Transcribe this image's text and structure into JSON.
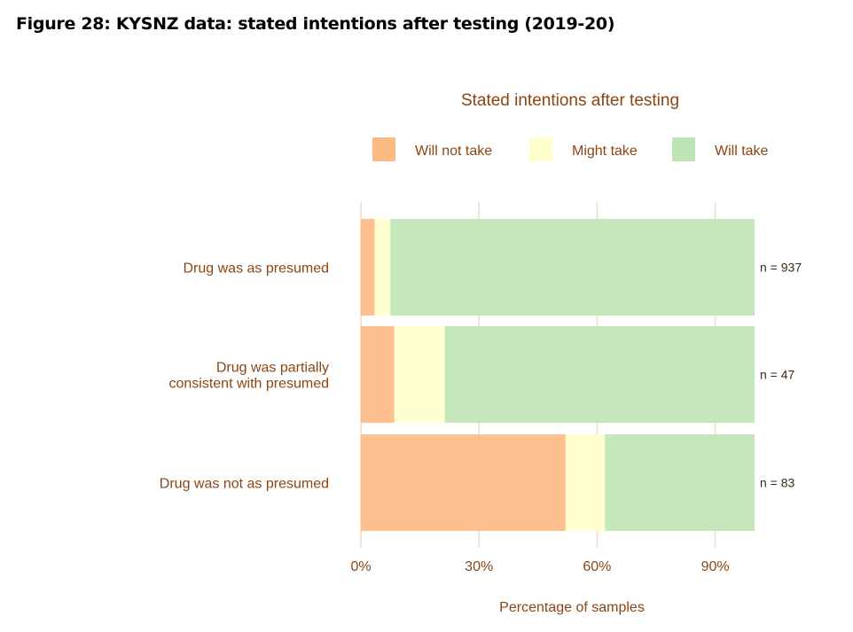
{
  "figure_title": "Figure 28: KYSNZ data: stated intentions after testing (2019-20)",
  "chart_data": {
    "type": "bar",
    "orientation": "horizontal",
    "stacked": true,
    "title": "Stated intentions after testing",
    "xlabel": "Percentage of samples",
    "ylabel": "",
    "xlim": [
      0,
      100
    ],
    "xticks": [
      0,
      30,
      60,
      90
    ],
    "xtick_labels": [
      "0%",
      "30%",
      "60%",
      "90%"
    ],
    "grid": "vertical",
    "legend_position": "top",
    "categories": [
      "Drug was as presumed",
      "Drug was partially consistent with presumed",
      "Drug was not as presumed"
    ],
    "category_lines": [
      [
        "Drug was as presumed"
      ],
      [
        "Drug was partially",
        "consistent with presumed"
      ],
      [
        "Drug was not as presumed"
      ]
    ],
    "n_labels": [
      "n = 937",
      "n = 47",
      "n = 83"
    ],
    "series": [
      {
        "name": "Will not take",
        "color": "#fdbb84",
        "values": [
          3.5,
          8.5,
          52.0
        ]
      },
      {
        "name": "Might take",
        "color": "#ffffcc",
        "values": [
          4.0,
          12.8,
          10.0
        ]
      },
      {
        "name": "Will take",
        "color": "#bfe5b6",
        "values": [
          92.5,
          78.7,
          38.0
        ]
      }
    ],
    "colors": {
      "text": "#8b4513",
      "gridline": "#f2dcc3"
    }
  }
}
